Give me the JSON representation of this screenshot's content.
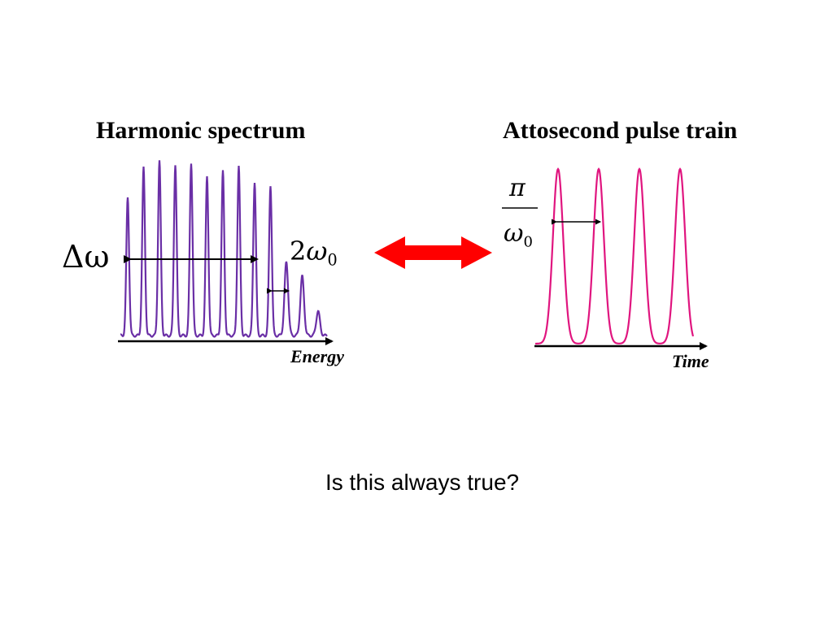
{
  "spectrum": {
    "title": "Harmonic spectrum",
    "axis_label": "Energy",
    "delta_symbol": "Δω",
    "spacing_coefficient": "2",
    "spacing_symbol": "ω",
    "spacing_subscript": "0",
    "color": "#6a2fa6"
  },
  "train": {
    "title": "Attosecond pulse train",
    "axis_label": "Time",
    "period_numerator": "π",
    "period_symbol": "ω",
    "period_subscript": "0",
    "color": "#e0157f"
  },
  "equivalence_arrow_color": "#ff0000",
  "question": "Is this always true?",
  "chart_data": [
    {
      "type": "line",
      "title": "Harmonic spectrum",
      "xlabel": "Energy",
      "peaks_relative": [
        0.79,
        0.96,
        1.0,
        0.98,
        0.99,
        0.91,
        0.94,
        0.97,
        0.88,
        0.86,
        0.42,
        0.34,
        0.14,
        0.06
      ]
    },
    {
      "type": "line",
      "title": "Attosecond pulse train",
      "xlabel": "Time",
      "pulses_relative": [
        1.0,
        1.0,
        1.0,
        1.0
      ]
    }
  ]
}
